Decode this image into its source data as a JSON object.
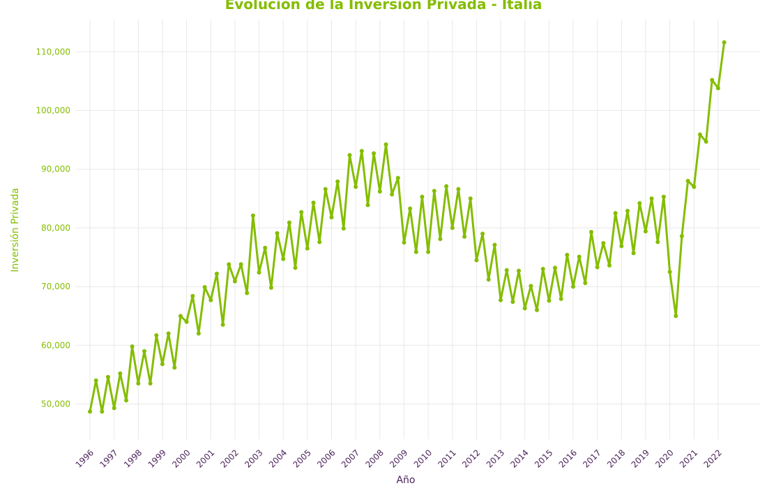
{
  "colors": {
    "accent": "#84bd00",
    "tick_x": "#4a235a",
    "grid": "#e8e8e8"
  },
  "chart_data": {
    "type": "line",
    "title": "Evolución de la Inversión Privada - Italia",
    "xlabel": "Año",
    "ylabel": "Inversión Privada",
    "x_ticks": [
      "1996",
      "1997",
      "1998",
      "1999",
      "2000",
      "2001",
      "2002",
      "2003",
      "2004",
      "2005",
      "2006",
      "2007",
      "2008",
      "2009",
      "2010",
      "2011",
      "2012",
      "2013",
      "2014",
      "2015",
      "2016",
      "2017",
      "2018",
      "2019",
      "2020",
      "2021",
      "2022"
    ],
    "y_ticks": [
      "50,000",
      "60,000",
      "70,000",
      "80,000",
      "90,000",
      "100,000",
      "110,000"
    ],
    "y_tick_values": [
      50000,
      60000,
      70000,
      80000,
      90000,
      100000,
      110000
    ],
    "ylim": [
      44000,
      115500
    ],
    "xlim": [
      1995.0,
      2023.0
    ],
    "grid": true,
    "series": [
      {
        "x": [
          1996.0,
          1996.25,
          1996.5,
          1996.75,
          1997.0,
          1997.25,
          1997.5,
          1997.75,
          1998.0,
          1998.25,
          1998.5,
          1998.75,
          1999.0,
          1999.25,
          1999.5,
          1999.75,
          2000.0,
          2000.25,
          2000.5,
          2000.75,
          2001.0,
          2001.25,
          2001.5,
          2001.75,
          2002.0,
          2002.25,
          2002.5,
          2002.75,
          2003.0,
          2003.25,
          2003.5,
          2003.75,
          2004.0,
          2004.25,
          2004.5,
          2004.75,
          2005.0,
          2005.25,
          2005.5,
          2005.75,
          2006.0,
          2006.25,
          2006.5,
          2006.75,
          2007.0,
          2007.25,
          2007.5,
          2007.75,
          2008.0,
          2008.25,
          2008.5,
          2008.75,
          2009.0,
          2009.25,
          2009.5,
          2009.75,
          2010.0,
          2010.25,
          2010.5,
          2010.75,
          2011.0,
          2011.25,
          2011.5,
          2011.75,
          2012.0,
          2012.25,
          2012.5,
          2012.75,
          2013.0,
          2013.25,
          2013.5,
          2013.75,
          2014.0,
          2014.25,
          2014.5,
          2014.75,
          2015.0,
          2015.25,
          2015.5,
          2015.75,
          2016.0,
          2016.25,
          2016.5,
          2016.75,
          2017.0,
          2017.25,
          2017.5,
          2017.75,
          2018.0,
          2018.25,
          2018.5,
          2018.75,
          2019.0,
          2019.25,
          2019.5,
          2019.75,
          2020.0,
          2020.25,
          2020.5,
          2020.75,
          2021.0,
          2021.25,
          2021.5,
          2021.75,
          2022.0,
          2022.25
        ],
        "y": [
          48700,
          54000,
          48700,
          54600,
          49300,
          55200,
          50600,
          59800,
          53500,
          59000,
          53500,
          61700,
          56800,
          62000,
          56200,
          65000,
          64000,
          68400,
          62000,
          69900,
          67700,
          72200,
          63500,
          73800,
          70900,
          73800,
          68900,
          82100,
          72400,
          76600,
          69800,
          79100,
          74700,
          80900,
          73200,
          82700,
          76500,
          84300,
          77600,
          86600,
          81800,
          87900,
          79900,
          92400,
          87000,
          93100,
          83900,
          92700,
          86200,
          94200,
          85700,
          88500,
          77500,
          83300,
          75900,
          85300,
          75900,
          86300,
          78100,
          87100,
          80000,
          86600,
          78500,
          85000,
          74500,
          79000,
          71200,
          77100,
          67700,
          72800,
          67400,
          72700,
          66300,
          70100,
          66000,
          73000,
          67600,
          73200,
          67900,
          75400,
          70000,
          75100,
          70600,
          79300,
          73300,
          77400,
          73600,
          82500,
          76900,
          82900,
          75700,
          84200,
          79400,
          85000,
          77600,
          85300,
          72500,
          65000,
          78600,
          88000,
          87000,
          95900,
          94700,
          105200,
          103800,
          111600
        ]
      }
    ]
  }
}
